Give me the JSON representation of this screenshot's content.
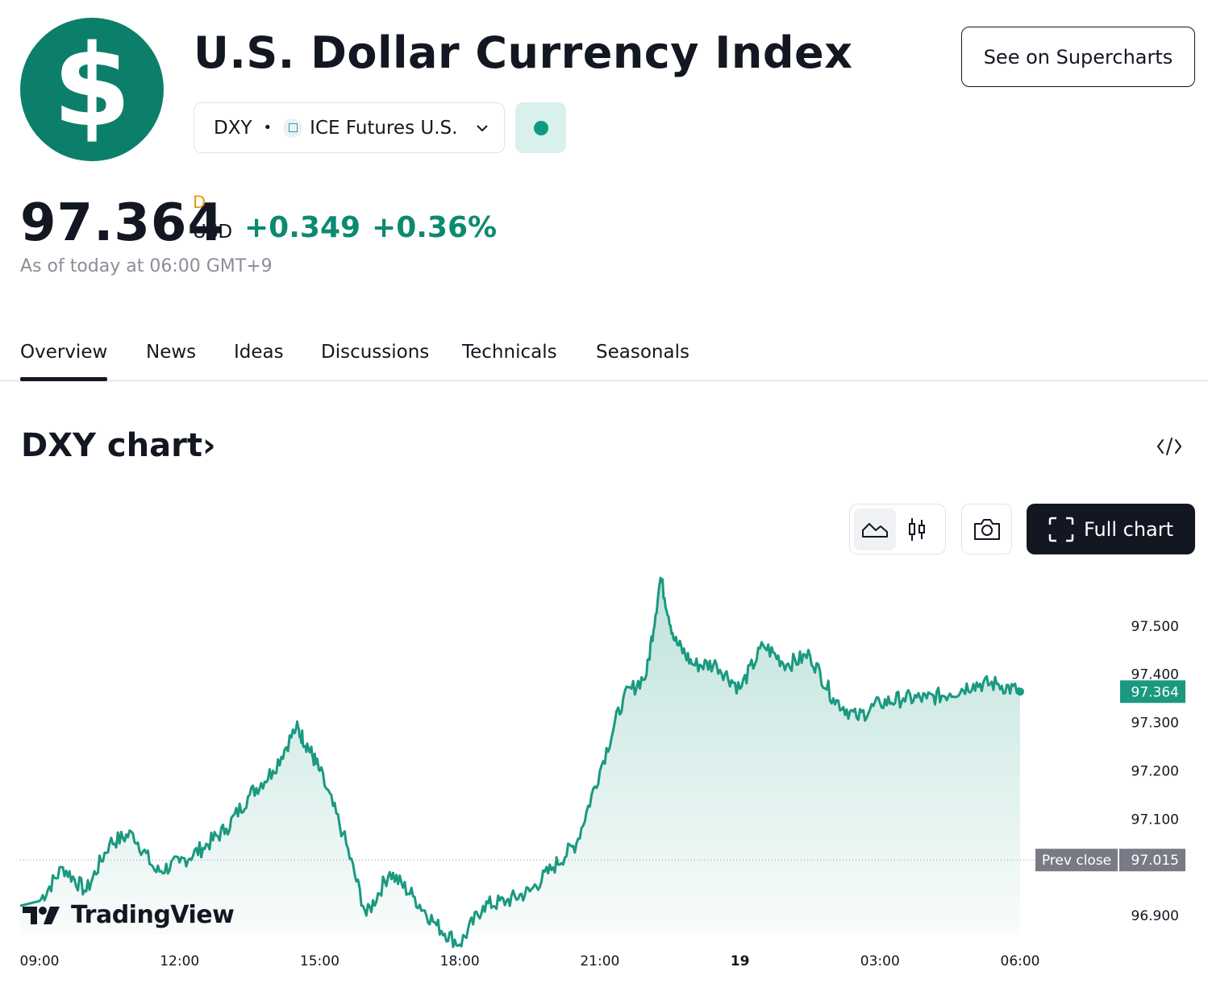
{
  "header": {
    "logo_symbol": "$",
    "title": "U.S. Dollar Currency Index",
    "supercharts_label": "See on Supercharts",
    "symbol": "DXY",
    "separator": "•",
    "exchange": "ICE Futures U.S.",
    "market_status_color": "#0f9b7f"
  },
  "quote": {
    "price": "97.364",
    "delayed_flag": "D",
    "currency": "USD",
    "change": "+0.349",
    "change_percent": "+0.36%",
    "as_of": "As of today at 06:00 GMT+9"
  },
  "tabs": [
    {
      "label": "Overview",
      "active": true
    },
    {
      "label": "News",
      "active": false
    },
    {
      "label": "Ideas",
      "active": false
    },
    {
      "label": "Discussions",
      "active": false
    },
    {
      "label": "Technicals",
      "active": false
    },
    {
      "label": "Seasonals",
      "active": false
    }
  ],
  "chart_section": {
    "title": "DXY chart",
    "title_arrow": "›",
    "full_chart_label": "Full chart",
    "branding": "TradingView"
  },
  "colors": {
    "accent": "#0c8a70",
    "line": "#1a9980",
    "prev_close_bg": "#787b86"
  },
  "chart_data": {
    "type": "area",
    "x_ticks": [
      "09:00",
      "12:00",
      "15:00",
      "18:00",
      "21:00",
      "19",
      "03:00",
      "06:00"
    ],
    "y_ticks": [
      "97.500",
      "97.400",
      "97.300",
      "97.200",
      "97.100",
      "96.900"
    ],
    "ylim": [
      96.86,
      97.62
    ],
    "last_value": 97.364,
    "last_value_label": "97.364",
    "prev_close_label": "Prev close",
    "prev_close_value": 97.015,
    "prev_close_value_label": "97.015",
    "series": [
      {
        "x_hours": [
          0,
          0.5,
          1,
          1.5,
          2,
          2.5,
          3,
          3.5,
          4,
          4.5,
          5,
          5.5,
          5.75,
          6,
          6.5,
          7,
          7.5,
          8,
          8.5,
          9,
          9.5,
          10,
          10.5,
          11,
          11.5,
          12,
          12.5,
          13,
          13.3,
          13.6,
          14,
          14.5,
          15,
          15.5,
          16,
          16.5,
          17,
          17.5,
          18,
          18.5,
          19,
          19.5,
          20,
          20.5,
          21
        ],
        "values": [
          96.93,
          97.0,
          96.95,
          97.05,
          97.07,
          96.99,
          97.01,
          97.04,
          97.08,
          97.15,
          97.2,
          97.29,
          97.25,
          97.2,
          97.07,
          96.9,
          96.99,
          96.94,
          96.88,
          96.84,
          96.92,
          96.93,
          96.95,
          97.0,
          97.05,
          97.2,
          97.35,
          97.4,
          97.6,
          97.47,
          97.42,
          97.42,
          97.37,
          97.46,
          97.42,
          97.44,
          97.35,
          97.31,
          97.34,
          97.35,
          97.35,
          97.36,
          97.38,
          97.38,
          97.364
        ]
      }
    ]
  }
}
